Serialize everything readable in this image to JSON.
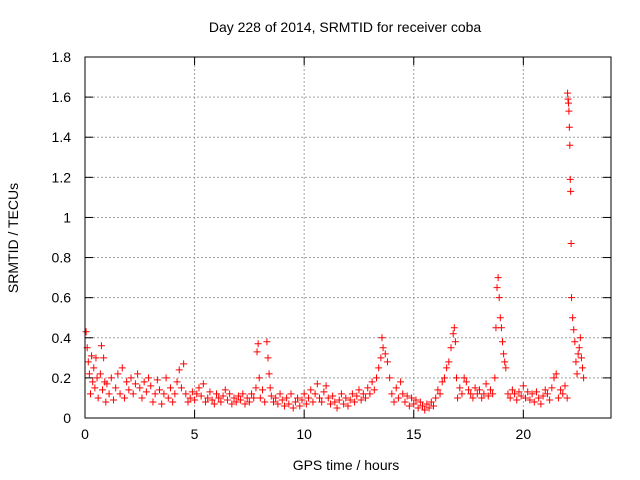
{
  "chart_data": {
    "type": "scatter",
    "title": "Day 228 of 2014, SRMTID for receiver coba",
    "xlabel": "GPS time / hours",
    "ylabel": "SRMTID / TECUs",
    "xlim": [
      0,
      24
    ],
    "ylim": [
      0,
      1.8
    ],
    "xticks": [
      0,
      5,
      10,
      15,
      20
    ],
    "yticks": [
      0,
      0.2,
      0.4,
      0.6,
      0.8,
      1,
      1.2,
      1.4,
      1.6,
      1.8
    ],
    "xtick_labels": [
      "0",
      "5",
      "10",
      "15",
      "20"
    ],
    "ytick_labels": [
      "0",
      "0.2",
      "0.4",
      "0.6",
      "0.8",
      "1",
      "1.2",
      "1.4",
      "1.6",
      "1.8"
    ],
    "grid": true,
    "marker": "plus",
    "color": "#ff0000",
    "series": [
      {
        "points": [
          [
            0.05,
            0.43
          ],
          [
            0.1,
            0.35
          ],
          [
            0.15,
            0.28
          ],
          [
            0.2,
            0.22
          ],
          [
            0.25,
            0.12
          ],
          [
            0.3,
            0.31
          ],
          [
            0.35,
            0.18
          ],
          [
            0.4,
            0.25
          ],
          [
            0.45,
            0.15
          ],
          [
            0.5,
            0.3
          ],
          [
            0.55,
            0.2
          ],
          [
            0.6,
            0.1
          ],
          [
            0.7,
            0.22
          ],
          [
            0.75,
            0.36
          ],
          [
            0.8,
            0.14
          ],
          [
            0.85,
            0.3
          ],
          [
            0.9,
            0.18
          ],
          [
            0.95,
            0.08
          ],
          [
            1.0,
            0.17
          ],
          [
            1.1,
            0.12
          ],
          [
            1.2,
            0.2
          ],
          [
            1.3,
            0.09
          ],
          [
            1.4,
            0.15
          ],
          [
            1.5,
            0.22
          ],
          [
            1.6,
            0.12
          ],
          [
            1.7,
            0.25
          ],
          [
            1.8,
            0.1
          ],
          [
            1.9,
            0.18
          ],
          [
            2.0,
            0.14
          ],
          [
            2.1,
            0.2
          ],
          [
            2.2,
            0.12
          ],
          [
            2.3,
            0.17
          ],
          [
            2.4,
            0.22
          ],
          [
            2.5,
            0.15
          ],
          [
            2.6,
            0.1
          ],
          [
            2.7,
            0.18
          ],
          [
            2.8,
            0.13
          ],
          [
            2.9,
            0.2
          ],
          [
            3.0,
            0.16
          ],
          [
            3.1,
            0.08
          ],
          [
            3.2,
            0.12
          ],
          [
            3.3,
            0.19
          ],
          [
            3.4,
            0.14
          ],
          [
            3.5,
            0.07
          ],
          [
            3.6,
            0.12
          ],
          [
            3.7,
            0.2
          ],
          [
            3.8,
            0.1
          ],
          [
            3.9,
            0.15
          ],
          [
            4.0,
            0.08
          ],
          [
            4.1,
            0.12
          ],
          [
            4.2,
            0.18
          ],
          [
            4.3,
            0.24
          ],
          [
            4.4,
            0.15
          ],
          [
            4.5,
            0.27
          ],
          [
            4.6,
            0.12
          ],
          [
            4.7,
            0.08
          ],
          [
            4.8,
            0.1
          ],
          [
            4.9,
            0.13
          ],
          [
            5.0,
            0.09
          ],
          [
            5.1,
            0.12
          ],
          [
            5.2,
            0.15
          ],
          [
            5.3,
            0.11
          ],
          [
            5.4,
            0.17
          ],
          [
            5.5,
            0.08
          ],
          [
            5.6,
            0.1
          ],
          [
            5.7,
            0.13
          ],
          [
            5.8,
            0.09
          ],
          [
            5.9,
            0.07
          ],
          [
            6.0,
            0.12
          ],
          [
            6.1,
            0.1
          ],
          [
            6.2,
            0.08
          ],
          [
            6.3,
            0.11
          ],
          [
            6.4,
            0.14
          ],
          [
            6.5,
            0.09
          ],
          [
            6.6,
            0.12
          ],
          [
            6.7,
            0.07
          ],
          [
            6.8,
            0.1
          ],
          [
            6.9,
            0.08
          ],
          [
            7.0,
            0.11
          ],
          [
            7.1,
            0.09
          ],
          [
            7.2,
            0.12
          ],
          [
            7.3,
            0.07
          ],
          [
            7.4,
            0.1
          ],
          [
            7.5,
            0.08
          ],
          [
            7.6,
            0.12
          ],
          [
            7.7,
            0.1
          ],
          [
            7.8,
            0.15
          ],
          [
            7.85,
            0.33
          ],
          [
            7.9,
            0.37
          ],
          [
            7.95,
            0.2
          ],
          [
            8.0,
            0.1
          ],
          [
            8.1,
            0.14
          ],
          [
            8.2,
            0.08
          ],
          [
            8.3,
            0.38
          ],
          [
            8.35,
            0.3
          ],
          [
            8.4,
            0.22
          ],
          [
            8.45,
            0.15
          ],
          [
            8.5,
            0.11
          ],
          [
            8.6,
            0.08
          ],
          [
            8.7,
            0.1
          ],
          [
            8.8,
            0.07
          ],
          [
            8.9,
            0.12
          ],
          [
            9.0,
            0.09
          ],
          [
            9.1,
            0.06
          ],
          [
            9.2,
            0.1
          ],
          [
            9.3,
            0.07
          ],
          [
            9.4,
            0.12
          ],
          [
            9.5,
            0.05
          ],
          [
            9.6,
            0.08
          ],
          [
            9.7,
            0.1
          ],
          [
            9.8,
            0.06
          ],
          [
            9.9,
            0.09
          ],
          [
            10.0,
            0.12
          ],
          [
            10.1,
            0.07
          ],
          [
            10.2,
            0.1
          ],
          [
            10.3,
            0.14
          ],
          [
            10.4,
            0.08
          ],
          [
            10.5,
            0.12
          ],
          [
            10.6,
            0.17
          ],
          [
            10.7,
            0.1
          ],
          [
            10.8,
            0.08
          ],
          [
            10.9,
            0.13
          ],
          [
            11.0,
            0.16
          ],
          [
            11.1,
            0.1
          ],
          [
            11.2,
            0.07
          ],
          [
            11.3,
            0.11
          ],
          [
            11.4,
            0.08
          ],
          [
            11.5,
            0.05
          ],
          [
            11.6,
            0.09
          ],
          [
            11.7,
            0.12
          ],
          [
            11.8,
            0.07
          ],
          [
            11.9,
            0.1
          ],
          [
            12.0,
            0.06
          ],
          [
            12.1,
            0.09
          ],
          [
            12.2,
            0.12
          ],
          [
            12.3,
            0.08
          ],
          [
            12.4,
            0.11
          ],
          [
            12.5,
            0.14
          ],
          [
            12.6,
            0.09
          ],
          [
            12.7,
            0.12
          ],
          [
            12.8,
            0.1
          ],
          [
            12.9,
            0.15
          ],
          [
            13.0,
            0.12
          ],
          [
            13.1,
            0.18
          ],
          [
            13.2,
            0.14
          ],
          [
            13.3,
            0.2
          ],
          [
            13.4,
            0.25
          ],
          [
            13.5,
            0.3
          ],
          [
            13.55,
            0.4
          ],
          [
            13.6,
            0.35
          ],
          [
            13.7,
            0.32
          ],
          [
            13.8,
            0.28
          ],
          [
            13.9,
            0.2
          ],
          [
            14.0,
            0.12
          ],
          [
            14.1,
            0.08
          ],
          [
            14.2,
            0.15
          ],
          [
            14.3,
            0.1
          ],
          [
            14.4,
            0.18
          ],
          [
            14.5,
            0.12
          ],
          [
            14.6,
            0.08
          ],
          [
            14.7,
            0.11
          ],
          [
            14.8,
            0.06
          ],
          [
            14.9,
            0.1
          ],
          [
            15.0,
            0.07
          ],
          [
            15.1,
            0.09
          ],
          [
            15.2,
            0.05
          ],
          [
            15.3,
            0.08
          ],
          [
            15.4,
            0.06
          ],
          [
            15.5,
            0.04
          ],
          [
            15.6,
            0.07
          ],
          [
            15.7,
            0.05
          ],
          [
            15.8,
            0.08
          ],
          [
            15.9,
            0.06
          ],
          [
            16.0,
            0.1
          ],
          [
            16.1,
            0.14
          ],
          [
            16.2,
            0.12
          ],
          [
            16.3,
            0.18
          ],
          [
            16.4,
            0.2
          ],
          [
            16.5,
            0.25
          ],
          [
            16.6,
            0.28
          ],
          [
            16.7,
            0.35
          ],
          [
            16.8,
            0.42
          ],
          [
            16.85,
            0.45
          ],
          [
            16.9,
            0.38
          ],
          [
            16.95,
            0.2
          ],
          [
            17.0,
            0.1
          ],
          [
            17.1,
            0.15
          ],
          [
            17.2,
            0.12
          ],
          [
            17.3,
            0.2
          ],
          [
            17.4,
            0.18
          ],
          [
            17.5,
            0.14
          ],
          [
            17.6,
            0.12
          ],
          [
            17.7,
            0.1
          ],
          [
            17.8,
            0.15
          ],
          [
            17.9,
            0.12
          ],
          [
            18.0,
            0.14
          ],
          [
            18.1,
            0.1
          ],
          [
            18.2,
            0.12
          ],
          [
            18.3,
            0.17
          ],
          [
            18.4,
            0.11
          ],
          [
            18.5,
            0.14
          ],
          [
            18.6,
            0.12
          ],
          [
            18.7,
            0.2
          ],
          [
            18.75,
            0.45
          ],
          [
            18.8,
            0.65
          ],
          [
            18.85,
            0.7
          ],
          [
            18.9,
            0.6
          ],
          [
            18.95,
            0.5
          ],
          [
            19.0,
            0.45
          ],
          [
            19.05,
            0.38
          ],
          [
            19.1,
            0.32
          ],
          [
            19.15,
            0.28
          ],
          [
            19.2,
            0.25
          ],
          [
            19.3,
            0.12
          ],
          [
            19.4,
            0.1
          ],
          [
            19.5,
            0.14
          ],
          [
            19.6,
            0.12
          ],
          [
            19.7,
            0.09
          ],
          [
            19.8,
            0.13
          ],
          [
            19.9,
            0.11
          ],
          [
            20.0,
            0.16
          ],
          [
            20.1,
            0.1
          ],
          [
            20.2,
            0.13
          ],
          [
            20.3,
            0.09
          ],
          [
            20.4,
            0.12
          ],
          [
            20.5,
            0.08
          ],
          [
            20.6,
            0.13
          ],
          [
            20.7,
            0.1
          ],
          [
            20.8,
            0.07
          ],
          [
            20.9,
            0.11
          ],
          [
            21.0,
            0.14
          ],
          [
            21.1,
            0.12
          ],
          [
            21.2,
            0.09
          ],
          [
            21.3,
            0.15
          ],
          [
            21.4,
            0.2
          ],
          [
            21.5,
            0.22
          ],
          [
            21.6,
            0.1
          ],
          [
            21.7,
            0.14
          ],
          [
            21.8,
            0.12
          ],
          [
            21.9,
            0.16
          ],
          [
            22.0,
            0.1
          ],
          [
            22.02,
            1.62
          ],
          [
            22.04,
            1.59
          ],
          [
            22.06,
            1.57
          ],
          [
            22.08,
            1.53
          ],
          [
            22.1,
            1.45
          ],
          [
            22.12,
            1.36
          ],
          [
            22.14,
            1.19
          ],
          [
            22.16,
            1.13
          ],
          [
            22.18,
            0.87
          ],
          [
            22.2,
            0.6
          ],
          [
            22.25,
            0.5
          ],
          [
            22.3,
            0.44
          ],
          [
            22.35,
            0.38
          ],
          [
            22.4,
            0.28
          ],
          [
            22.45,
            0.22
          ],
          [
            22.5,
            0.32
          ],
          [
            22.55,
            0.35
          ],
          [
            22.6,
            0.4
          ],
          [
            22.65,
            0.3
          ],
          [
            22.7,
            0.25
          ],
          [
            22.75,
            0.2
          ]
        ]
      }
    ]
  }
}
